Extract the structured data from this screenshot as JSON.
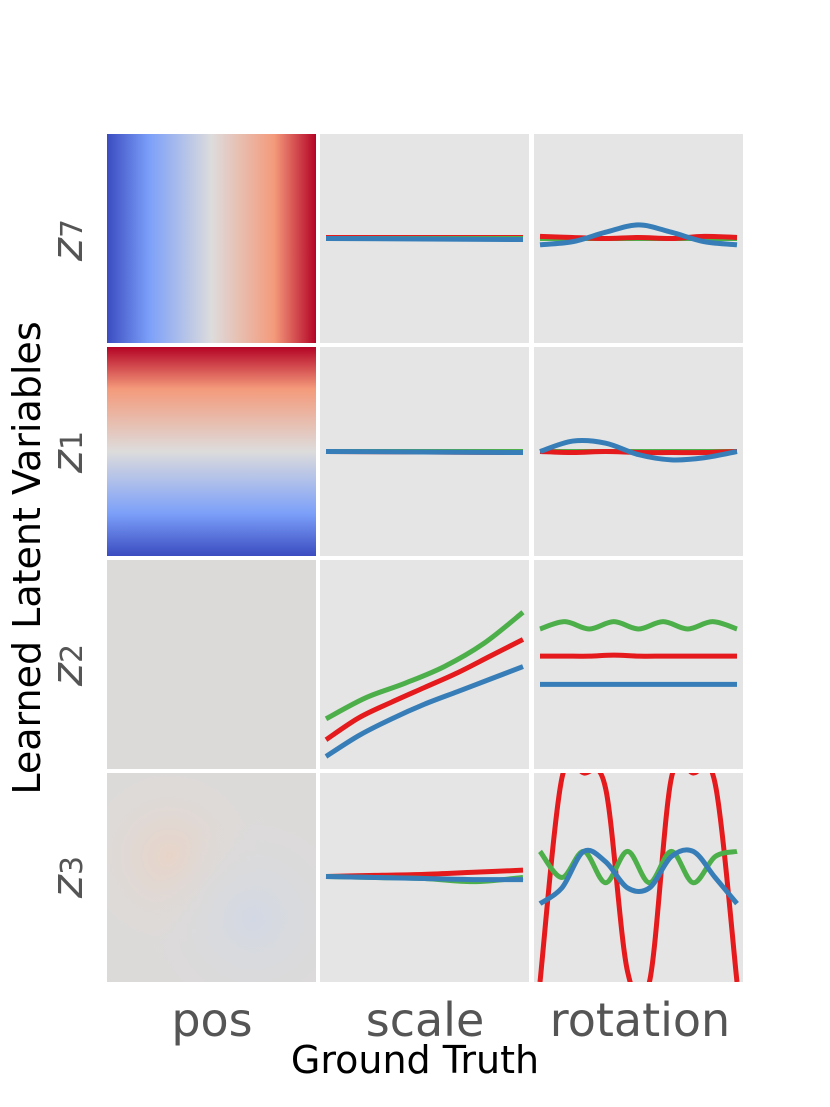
{
  "colors": {
    "panel_bg": "#e5e5e5",
    "red": "#e41a1c",
    "blue": "#377eb8",
    "green": "#4daf4a",
    "coolwarm_low": "#3b4cc0",
    "coolwarm_mid": "#dddcdc",
    "coolwarm_high": "#b40426"
  },
  "xlabel": "Ground Truth",
  "ylabel": "Learned Latent Variables",
  "columns": [
    "pos",
    "scale",
    "rotation"
  ],
  "rows": [
    {
      "label": "z",
      "sub": "7"
    },
    {
      "label": "z",
      "sub": "1"
    },
    {
      "label": "z",
      "sub": "2"
    },
    {
      "label": "z",
      "sub": "3"
    }
  ],
  "chart_data": {
    "type": "heatmap",
    "grid": {
      "rows": 4,
      "cols": 3
    },
    "series_colors": [
      "red",
      "green",
      "blue"
    ],
    "ylim": [
      -1,
      1
    ],
    "panels": [
      {
        "row": 0,
        "col": 0,
        "kind": "heatmap",
        "pattern": "horizontal-gradient",
        "range": [
          -1,
          1
        ]
      },
      {
        "row": 0,
        "col": 1,
        "kind": "line",
        "series": [
          {
            "color": "red",
            "values": [
              0.01,
              0.01
            ]
          },
          {
            "color": "green",
            "values": [
              0.0,
              0.0
            ]
          },
          {
            "color": "blue",
            "values": [
              0.0,
              -0.01
            ]
          }
        ]
      },
      {
        "row": 0,
        "col": 2,
        "kind": "line",
        "series": [
          {
            "color": "green",
            "values": [
              0.0,
              0.0,
              0.0,
              0.0,
              0.0,
              0.0,
              0.0
            ]
          },
          {
            "color": "red",
            "values": [
              0.02,
              0.01,
              0.0,
              0.01,
              0.0,
              0.02,
              0.01
            ]
          },
          {
            "color": "blue",
            "values": [
              -0.06,
              -0.03,
              0.06,
              0.13,
              0.06,
              -0.03,
              -0.06
            ]
          }
        ]
      },
      {
        "row": 1,
        "col": 0,
        "kind": "heatmap",
        "pattern": "vertical-gradient",
        "range": [
          1,
          -1
        ]
      },
      {
        "row": 1,
        "col": 1,
        "kind": "line",
        "series": [
          {
            "color": "red",
            "values": [
              0.0,
              -0.01
            ]
          },
          {
            "color": "green",
            "values": [
              0.0,
              0.0
            ]
          },
          {
            "color": "blue",
            "values": [
              0.0,
              -0.01
            ]
          }
        ]
      },
      {
        "row": 1,
        "col": 2,
        "kind": "line",
        "series": [
          {
            "color": "green",
            "values": [
              0.0,
              0.0,
              0.0,
              0.0,
              0.0,
              0.0,
              0.0
            ]
          },
          {
            "color": "red",
            "values": [
              0.0,
              -0.01,
              0.0,
              -0.01,
              -0.01,
              -0.01,
              0.0
            ]
          },
          {
            "color": "blue",
            "values": [
              0.0,
              0.1,
              0.08,
              -0.03,
              -0.08,
              -0.06,
              0.0
            ]
          }
        ]
      },
      {
        "row": 2,
        "col": 0,
        "kind": "heatmap",
        "pattern": "near-uniform",
        "range": [
          -0.05,
          0.05
        ]
      },
      {
        "row": 2,
        "col": 1,
        "kind": "line",
        "series": [
          {
            "color": "green",
            "values": [
              -0.52,
              -0.32,
              -0.18,
              -0.02,
              0.2,
              0.5
            ]
          },
          {
            "color": "red",
            "values": [
              -0.72,
              -0.51,
              -0.36,
              -0.22,
              -0.08,
              0.08,
              0.24
            ]
          },
          {
            "color": "blue",
            "values": [
              -0.88,
              -0.68,
              -0.52,
              -0.38,
              -0.26,
              -0.14,
              -0.02
            ]
          }
        ]
      },
      {
        "row": 2,
        "col": 2,
        "kind": "line",
        "series": [
          {
            "color": "green",
            "values": [
              0.34,
              0.41,
              0.34,
              0.41,
              0.34,
              0.41,
              0.34,
              0.41,
              0.34
            ]
          },
          {
            "color": "red",
            "values": [
              0.08,
              0.08,
              0.08,
              0.09,
              0.08,
              0.08,
              0.08,
              0.08,
              0.08
            ]
          },
          {
            "color": "blue",
            "values": [
              -0.19,
              -0.19,
              -0.19,
              -0.19,
              -0.19,
              -0.19,
              -0.19,
              -0.19,
              -0.19
            ]
          }
        ]
      },
      {
        "row": 3,
        "col": 0,
        "kind": "heatmap",
        "pattern": "faint-noise",
        "range": [
          -0.05,
          0.05
        ]
      },
      {
        "row": 3,
        "col": 1,
        "kind": "line",
        "series": [
          {
            "color": "red",
            "values": [
              0.01,
              0.02,
              0.03,
              0.05,
              0.07
            ]
          },
          {
            "color": "green",
            "values": [
              0.01,
              0.0,
              -0.01,
              -0.04,
              0.0
            ]
          },
          {
            "color": "blue",
            "values": [
              0.01,
              0.0,
              -0.01,
              -0.02,
              -0.02
            ]
          }
        ]
      },
      {
        "row": 3,
        "col": 2,
        "kind": "line",
        "series": [
          {
            "color": "red",
            "values": [
              -1.0,
              0.95,
              1.0,
              0.85,
              -0.9,
              -1.0,
              0.95,
              1.0,
              0.9,
              -1.0
            ]
          },
          {
            "color": "green",
            "values": [
              0.25,
              0.0,
              0.25,
              -0.05,
              0.25,
              -0.05,
              0.25,
              -0.05,
              0.2,
              0.25
            ]
          },
          {
            "color": "blue",
            "values": [
              -0.25,
              -0.1,
              0.25,
              0.15,
              -0.1,
              -0.1,
              0.2,
              0.25,
              0.0,
              -0.25
            ]
          }
        ]
      }
    ]
  }
}
